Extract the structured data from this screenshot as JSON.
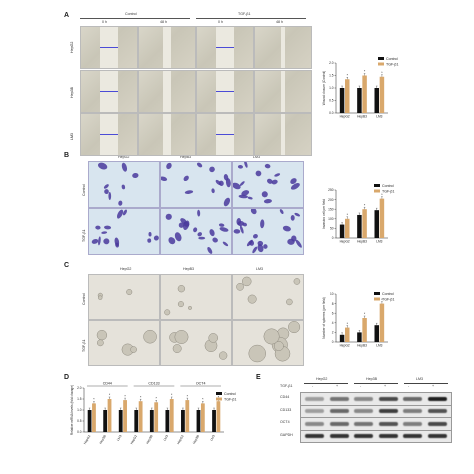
{
  "panels": {
    "A": {
      "label": "A",
      "group_left": "Control",
      "group_right": "TGF-β1",
      "times": [
        "0 h",
        "48 h",
        "0 h",
        "48 h"
      ],
      "rows": [
        "HepG2",
        "Hep3B",
        "LM3"
      ]
    },
    "B": {
      "label": "B",
      "cols": [
        "HepG2",
        "HepB3",
        "LM3"
      ],
      "rows": [
        "Control",
        "TGF-β1"
      ]
    },
    "C": {
      "label": "C",
      "cols": [
        "HepG2",
        "HepB3",
        "LM3"
      ],
      "rows": [
        "Control",
        "TGF-β1"
      ]
    },
    "D": {
      "label": "D",
      "gene_groups": [
        "CD44",
        "CD133",
        "OCT4"
      ]
    },
    "E": {
      "label": "E",
      "cols": [
        "HepG2",
        "Hep3B",
        "LM3"
      ],
      "tgf_label": "TGF-β1",
      "treat_signs": [
        "-",
        "+",
        "-",
        "+",
        "-",
        "+"
      ],
      "bands": [
        "CD44",
        "CD133",
        "OCT4",
        "GAPDH"
      ]
    }
  },
  "chart_data": [
    {
      "type": "bar",
      "id": "A",
      "categories": [
        "HepG2",
        "HepB3",
        "LM3"
      ],
      "series": [
        {
          "name": "Control",
          "color": "#111111",
          "values": [
            1.0,
            1.0,
            1.0
          ]
        },
        {
          "name": "TGF-β1",
          "color": "#d9a86c",
          "values": [
            1.35,
            1.5,
            1.45
          ]
        }
      ],
      "ylabel": "Wound closure (Control)",
      "ylim": [
        0,
        2
      ],
      "yticks": [
        "0.0",
        "0.5",
        "1.0",
        "1.5",
        "2.0"
      ],
      "legend": "top-right"
    },
    {
      "type": "bar",
      "id": "B",
      "categories": [
        "HepG2",
        "HepB3",
        "LM3"
      ],
      "series": [
        {
          "name": "Control",
          "color": "#111111",
          "values": [
            70,
            120,
            145
          ]
        },
        {
          "name": "TGF-β1",
          "color": "#d9a86c",
          "values": [
            100,
            150,
            205
          ]
        }
      ],
      "ylabel": "Invasion cell per field",
      "ylim": [
        0,
        250
      ],
      "yticks": [
        "0",
        "50",
        "100",
        "150",
        "200",
        "250"
      ],
      "legend": "top-right"
    },
    {
      "type": "bar",
      "id": "C",
      "categories": [
        "HepG2",
        "HepB3",
        "LM3"
      ],
      "series": [
        {
          "name": "Control",
          "color": "#111111",
          "values": [
            1.5,
            2.0,
            3.5
          ]
        },
        {
          "name": "TGF-β1",
          "color": "#d9a86c",
          "values": [
            3.0,
            5.0,
            8.0
          ]
        }
      ],
      "ylabel": "Number of spheres (per field)",
      "ylim": [
        0,
        10
      ],
      "yticks": [
        "0",
        "2",
        "4",
        "6",
        "8",
        "10"
      ],
      "legend": "top-right"
    },
    {
      "type": "bar",
      "id": "D",
      "categories": [
        "HepG2",
        "Hep3B",
        "LM3",
        "HepG2",
        "Hep3B",
        "LM3",
        "HepG2",
        "Hep3B",
        "LM3"
      ],
      "series": [
        {
          "name": "Control",
          "color": "#111111",
          "values": [
            1,
            1,
            1,
            1,
            1,
            1,
            1,
            1,
            1
          ]
        },
        {
          "name": "TGF-β1",
          "color": "#d9a86c",
          "values": [
            1.3,
            1.5,
            1.45,
            1.4,
            1.35,
            1.5,
            1.45,
            1.3,
            1.4
          ]
        }
      ],
      "ylabel": "Relative mRNA levels (fold change)",
      "ylim": [
        0,
        2.0
      ],
      "yticks": [
        "0.0",
        "0.5",
        "1.0",
        "1.5",
        "2.0"
      ],
      "legend": "top-right"
    }
  ]
}
